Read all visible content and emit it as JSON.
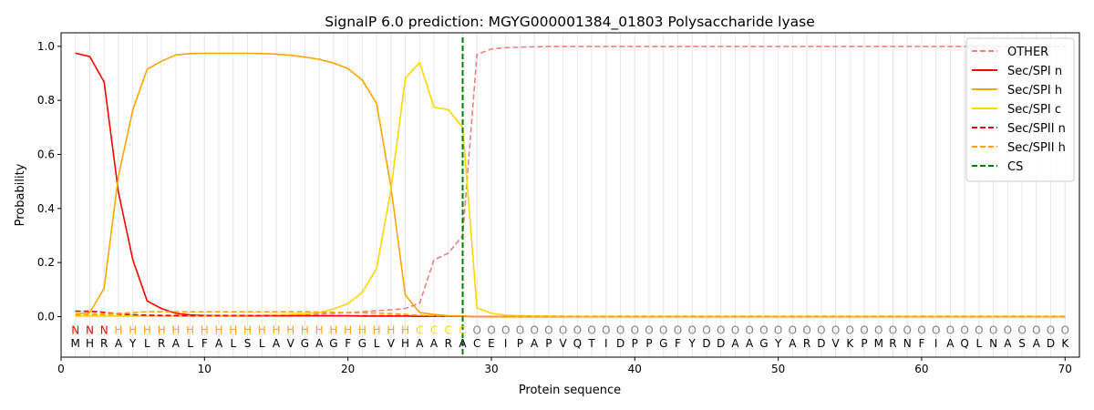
{
  "chart_data": {
    "type": "line",
    "title": "SignalP 6.0 prediction: MGYG000001384_01803 Polysaccharide lyase",
    "xlabel": "Protein sequence",
    "ylabel": "Probability",
    "xlim": [
      0,
      71
    ],
    "ylim": [
      -0.15,
      1.05
    ],
    "xticks": [
      0,
      10,
      20,
      30,
      40,
      50,
      60,
      70
    ],
    "yticks": [
      0.0,
      0.2,
      0.4,
      0.6,
      0.8,
      1.0
    ],
    "ytick_labels": [
      "0.0",
      "0.2",
      "0.4",
      "0.6",
      "0.8",
      "1.0"
    ],
    "grid": "vertical lines at each residue",
    "legend_position": "top-right",
    "sequence": [
      "M",
      "H",
      "R",
      "A",
      "Y",
      "L",
      "R",
      "A",
      "L",
      "F",
      "A",
      "L",
      "S",
      "L",
      "A",
      "V",
      "G",
      "A",
      "G",
      "F",
      "G",
      "L",
      "V",
      "H",
      "A",
      "A",
      "R",
      "A",
      "C",
      "E",
      "I",
      "P",
      "A",
      "P",
      "V",
      "Q",
      "T",
      "I",
      "D",
      "P",
      "P",
      "G",
      "F",
      "Y",
      "D",
      "D",
      "A",
      "A",
      "G",
      "Y",
      "A",
      "R",
      "D",
      "V",
      "K",
      "P",
      "M",
      "R",
      "N",
      "F",
      "I",
      "A",
      "Q",
      "L",
      "N",
      "A",
      "S",
      "A",
      "D",
      "K"
    ],
    "labels": [
      "N",
      "N",
      "N",
      "H",
      "H",
      "H",
      "H",
      "H",
      "H",
      "H",
      "H",
      "H",
      "H",
      "H",
      "H",
      "H",
      "H",
      "H",
      "H",
      "H",
      "H",
      "H",
      "H",
      "H",
      "C",
      "C",
      "C",
      "C",
      "O",
      "O",
      "O",
      "O",
      "O",
      "O",
      "O",
      "O",
      "O",
      "O",
      "O",
      "O",
      "O",
      "O",
      "O",
      "O",
      "O",
      "O",
      "O",
      "O",
      "O",
      "O",
      "O",
      "O",
      "O",
      "O",
      "O",
      "O",
      "O",
      "O",
      "O",
      "O",
      "O",
      "O",
      "O",
      "O",
      "O",
      "O",
      "O",
      "O",
      "O",
      "O"
    ],
    "label_colors": {
      "N": "#ff0000",
      "H": "#ffa500",
      "C": "#ffd700",
      "O": "#808080"
    },
    "cs_position": 28,
    "series": [
      {
        "name": "OTHER",
        "color": "#f08080",
        "dash": true,
        "values": [
          0.005,
          0.005,
          0.005,
          0.005,
          0.005,
          0.005,
          0.005,
          0.005,
          0.005,
          0.005,
          0.005,
          0.005,
          0.005,
          0.005,
          0.005,
          0.005,
          0.005,
          0.01,
          0.012,
          0.015,
          0.018,
          0.022,
          0.025,
          0.03,
          0.05,
          0.21,
          0.235,
          0.3,
          0.97,
          0.99,
          0.995,
          0.997,
          0.998,
          0.999,
          0.999,
          0.999,
          0.999,
          0.999,
          0.999,
          0.999,
          0.999,
          0.999,
          0.999,
          0.999,
          0.999,
          0.999,
          0.999,
          0.999,
          0.999,
          0.999,
          0.999,
          0.999,
          0.999,
          0.999,
          0.999,
          0.999,
          0.999,
          0.999,
          0.999,
          0.999,
          0.999,
          0.999,
          0.999,
          0.999,
          0.999,
          0.999,
          0.999,
          0.999,
          0.999,
          0.999
        ]
      },
      {
        "name": "Sec/SPI n",
        "color": "#ff0000",
        "dash": false,
        "values": [
          0.975,
          0.962,
          0.868,
          0.46,
          0.21,
          0.058,
          0.03,
          0.012,
          0.006,
          0.004,
          0.003,
          0.003,
          0.003,
          0.003,
          0.003,
          0.003,
          0.003,
          0.003,
          0.003,
          0.003,
          0.002,
          0.002,
          0.002,
          0.002,
          0.001,
          0.001,
          0.001,
          0.001,
          0,
          0,
          0,
          0,
          0,
          0,
          0,
          0,
          0,
          0,
          0,
          0,
          0,
          0,
          0,
          0,
          0,
          0,
          0,
          0,
          0,
          0,
          0,
          0,
          0,
          0,
          0,
          0,
          0,
          0,
          0,
          0,
          0,
          0,
          0,
          0,
          0,
          0,
          0,
          0,
          0,
          0
        ]
      },
      {
        "name": "Sec/SPI h",
        "color": "#ffa500",
        "dash": false,
        "values": [
          0.01,
          0.015,
          0.105,
          0.52,
          0.765,
          0.915,
          0.945,
          0.968,
          0.973,
          0.974,
          0.974,
          0.974,
          0.974,
          0.973,
          0.971,
          0.967,
          0.96,
          0.952,
          0.938,
          0.918,
          0.875,
          0.788,
          0.48,
          0.08,
          0.015,
          0.008,
          0.003,
          0.002,
          0,
          0,
          0,
          0,
          0,
          0,
          0,
          0,
          0,
          0,
          0,
          0,
          0,
          0,
          0,
          0,
          0,
          0,
          0,
          0,
          0,
          0,
          0,
          0,
          0,
          0,
          0,
          0,
          0,
          0,
          0,
          0,
          0,
          0,
          0,
          0,
          0,
          0,
          0,
          0,
          0,
          0
        ]
      },
      {
        "name": "Sec/SPI c",
        "color": "#ffd700",
        "dash": false,
        "values": [
          0.002,
          0.002,
          0.002,
          0.002,
          0.002,
          0.002,
          0.002,
          0.002,
          0.002,
          0.003,
          0.003,
          0.004,
          0.005,
          0.006,
          0.007,
          0.008,
          0.01,
          0.015,
          0.028,
          0.048,
          0.09,
          0.178,
          0.47,
          0.882,
          0.94,
          0.775,
          0.765,
          0.7,
          0.032,
          0.012,
          0.005,
          0.003,
          0.002,
          0.002,
          0.001,
          0.001,
          0.001,
          0.001,
          0.001,
          0.001,
          0.001,
          0.001,
          0.001,
          0.001,
          0.001,
          0.001,
          0.001,
          0.001,
          0.001,
          0.001,
          0.001,
          0.001,
          0.001,
          0.001,
          0.001,
          0.001,
          0.001,
          0.001,
          0.001,
          0.001,
          0.001,
          0.001,
          0.001,
          0.001,
          0.001,
          0.001,
          0.001,
          0.001,
          0.001,
          0.001
        ]
      },
      {
        "name": "Sec/SPII n",
        "color": "#ff0000",
        "dash": true,
        "values": [
          0.02,
          0.02,
          0.016,
          0.01,
          0.007,
          0.005,
          0.004,
          0.003,
          0.003,
          0.003,
          0.003,
          0.003,
          0.003,
          0.003,
          0.003,
          0.003,
          0.003,
          0.003,
          0.003,
          0.003,
          0.003,
          0.003,
          0.003,
          0.003,
          0.002,
          0.001,
          0.001,
          0.001,
          0,
          0,
          0,
          0,
          0,
          0,
          0,
          0,
          0,
          0,
          0,
          0,
          0,
          0,
          0,
          0,
          0,
          0,
          0,
          0,
          0,
          0,
          0,
          0,
          0,
          0,
          0,
          0,
          0,
          0,
          0,
          0,
          0,
          0,
          0,
          0,
          0,
          0,
          0,
          0,
          0,
          0
        ]
      },
      {
        "name": "Sec/SPII h",
        "color": "#ffa500",
        "dash": true,
        "values": [
          0.005,
          0.008,
          0.01,
          0.012,
          0.015,
          0.018,
          0.018,
          0.018,
          0.018,
          0.018,
          0.018,
          0.018,
          0.018,
          0.018,
          0.018,
          0.018,
          0.018,
          0.017,
          0.016,
          0.015,
          0.014,
          0.013,
          0.011,
          0.008,
          0.005,
          0.003,
          0.002,
          0.001,
          0,
          0,
          0,
          0,
          0,
          0,
          0,
          0,
          0,
          0,
          0,
          0,
          0,
          0,
          0,
          0,
          0,
          0,
          0,
          0,
          0,
          0,
          0,
          0,
          0,
          0,
          0,
          0,
          0,
          0,
          0,
          0,
          0,
          0,
          0,
          0,
          0,
          0,
          0,
          0,
          0,
          0
        ]
      }
    ],
    "cs_legend": {
      "name": "CS",
      "color": "#008000"
    }
  }
}
